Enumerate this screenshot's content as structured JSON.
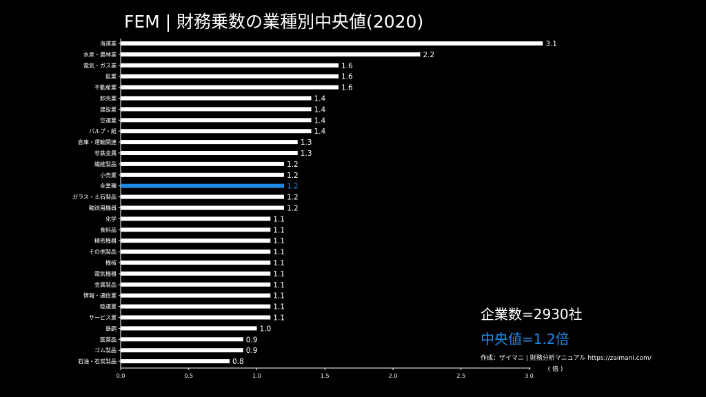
{
  "colors": {
    "background": "#000000",
    "bar": "#ffffff",
    "highlight": "#1e88e5",
    "text": "#ffffff"
  },
  "header": {
    "title": "FEM | 財務乗数の業種別中央値(2020)"
  },
  "stats": {
    "count_text": "企業数=2930社",
    "median_text": "中央値=1.2倍"
  },
  "credit": "作成：ザイマニ | 財務分析マニュアル https://zaimani.com/",
  "chart_data": {
    "type": "bar",
    "orientation": "horizontal",
    "title": "FEM | 財務乗数の業種別中央値(2020)",
    "xlabel": "( 倍 )",
    "ylabel": "",
    "xlim": [
      0,
      3.1
    ],
    "xticks": [
      "0.0",
      "0.5",
      "1.0",
      "1.5",
      "2.0",
      "2.5",
      "3.0"
    ],
    "xtick_values": [
      0,
      0.5,
      1.0,
      1.5,
      2.0,
      2.5,
      3.0
    ],
    "highlight_category": "全業種",
    "categories": [
      "海運業",
      "水産・農林業",
      "電気・ガス業",
      "鉱業",
      "不動産業",
      "卸売業",
      "建設業",
      "空運業",
      "パルプ・紙",
      "倉庫・運輸関連",
      "非鉄金属",
      "繊維製品",
      "小売業",
      "全業種",
      "ガラス・土石製品",
      "輸送用機器",
      "化学",
      "食料品",
      "精密機器",
      "その他製品",
      "機械",
      "電気機器",
      "金属製品",
      "情報・通信業",
      "陸運業",
      "サービス業",
      "鉄鋼",
      "医薬品",
      "ゴム製品",
      "石油・石炭製品"
    ],
    "values": [
      3.1,
      2.2,
      1.6,
      1.6,
      1.6,
      1.4,
      1.4,
      1.4,
      1.4,
      1.3,
      1.3,
      1.2,
      1.2,
      1.2,
      1.2,
      1.2,
      1.1,
      1.1,
      1.1,
      1.1,
      1.1,
      1.1,
      1.1,
      1.1,
      1.1,
      1.1,
      1.0,
      0.9,
      0.9,
      0.8
    ],
    "value_labels": [
      "3.1",
      "2.2",
      "1.6",
      "1.6",
      "1.6",
      "1.4",
      "1.4",
      "1.4",
      "1.4",
      "1.3",
      "1.3",
      "1.2",
      "1.2",
      "1.2",
      "1.2",
      "1.2",
      "1.1",
      "1.1",
      "1.1",
      "1.1",
      "1.1",
      "1.1",
      "1.1",
      "1.1",
      "1.1",
      "1.1",
      "1.0",
      "0.9",
      "0.9",
      "0.8"
    ],
    "grid": false,
    "legend": false
  }
}
